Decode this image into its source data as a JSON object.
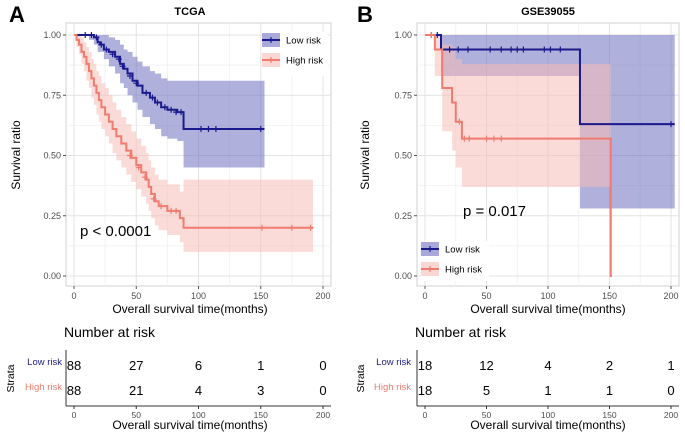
{
  "chart_data": [
    {
      "type": "line",
      "subtype": "kaplan-meier",
      "panel_label": "A",
      "title": "TCGA",
      "xlabel": "Overall survival time(months)",
      "ylabel": "Survival ratio",
      "xlim": [
        0,
        200
      ],
      "ylim": [
        0,
        1
      ],
      "x_ticks": [
        "0",
        "50",
        "100",
        "150",
        "200"
      ],
      "y_ticks": [
        "0.00",
        "0.25",
        "0.50",
        "0.75",
        "1.00"
      ],
      "p_value": "p < 0.0001",
      "legend_position": "top-right",
      "series": [
        {
          "name": "Low risk",
          "color": "#1a1a8c",
          "band_color": "#6f6fbf",
          "steps": [
            [
              0,
              1
            ],
            [
              12,
              1
            ],
            [
              16,
              0.99
            ],
            [
              19,
              0.97
            ],
            [
              21,
              0.96
            ],
            [
              24,
              0.94
            ],
            [
              28,
              0.93
            ],
            [
              33,
              0.91
            ],
            [
              37,
              0.88
            ],
            [
              40,
              0.86
            ],
            [
              43,
              0.84
            ],
            [
              47,
              0.81
            ],
            [
              51,
              0.79
            ],
            [
              55,
              0.76
            ],
            [
              61,
              0.74
            ],
            [
              65,
              0.72
            ],
            [
              70,
              0.7
            ],
            [
              75,
              0.69
            ],
            [
              83,
              0.68
            ],
            [
              88,
              0.61
            ],
            [
              153,
              0.61
            ]
          ],
          "lower": [
            [
              0,
              1
            ],
            [
              12,
              0.98
            ],
            [
              16,
              0.96
            ],
            [
              19,
              0.93
            ],
            [
              24,
              0.9
            ],
            [
              28,
              0.87
            ],
            [
              33,
              0.84
            ],
            [
              37,
              0.8
            ],
            [
              40,
              0.78
            ],
            [
              43,
              0.75
            ],
            [
              47,
              0.72
            ],
            [
              51,
              0.69
            ],
            [
              55,
              0.66
            ],
            [
              61,
              0.63
            ],
            [
              65,
              0.61
            ],
            [
              70,
              0.58
            ],
            [
              75,
              0.57
            ],
            [
              83,
              0.56
            ],
            [
              88,
              0.45
            ],
            [
              153,
              0.45
            ]
          ],
          "upper": [
            [
              0,
              1
            ],
            [
              24,
              1
            ],
            [
              28,
              0.99
            ],
            [
              33,
              0.98
            ],
            [
              37,
              0.96
            ],
            [
              40,
              0.94
            ],
            [
              43,
              0.93
            ],
            [
              47,
              0.91
            ],
            [
              51,
              0.89
            ],
            [
              55,
              0.87
            ],
            [
              61,
              0.85
            ],
            [
              65,
              0.84
            ],
            [
              70,
              0.82
            ],
            [
              75,
              0.81
            ],
            [
              83,
              0.81
            ],
            [
              88,
              0.81
            ],
            [
              153,
              0.81
            ]
          ],
          "censors": [
            [
              9,
              1
            ],
            [
              14,
              1
            ],
            [
              18,
              0.99
            ],
            [
              22,
              0.96
            ],
            [
              26,
              0.94
            ],
            [
              31,
              0.92
            ],
            [
              36,
              0.9
            ],
            [
              39,
              0.87
            ],
            [
              45,
              0.83
            ],
            [
              50,
              0.8
            ],
            [
              58,
              0.76
            ],
            [
              63,
              0.74
            ],
            [
              67,
              0.72
            ],
            [
              73,
              0.7
            ],
            [
              78,
              0.69
            ],
            [
              82,
              0.68
            ],
            [
              86,
              0.68
            ],
            [
              102,
              0.61
            ],
            [
              108,
              0.61
            ],
            [
              114,
              0.61
            ],
            [
              150,
              0.61
            ]
          ]
        },
        {
          "name": "High risk",
          "color": "#f07b6e",
          "band_color": "#f8bdb6",
          "steps": [
            [
              0,
              1
            ],
            [
              2,
              0.98
            ],
            [
              4,
              0.96
            ],
            [
              6,
              0.93
            ],
            [
              8,
              0.91
            ],
            [
              10,
              0.88
            ],
            [
              12,
              0.85
            ],
            [
              14,
              0.82
            ],
            [
              16,
              0.79
            ],
            [
              18,
              0.76
            ],
            [
              20,
              0.73
            ],
            [
              22,
              0.7
            ],
            [
              25,
              0.67
            ],
            [
              28,
              0.64
            ],
            [
              31,
              0.61
            ],
            [
              34,
              0.58
            ],
            [
              38,
              0.55
            ],
            [
              42,
              0.52
            ],
            [
              46,
              0.49
            ],
            [
              50,
              0.46
            ],
            [
              54,
              0.43
            ],
            [
              58,
              0.4
            ],
            [
              60,
              0.37
            ],
            [
              62,
              0.34
            ],
            [
              65,
              0.31
            ],
            [
              68,
              0.29
            ],
            [
              75,
              0.27
            ],
            [
              85,
              0.24
            ],
            [
              88,
              0.2
            ],
            [
              192,
              0.2
            ]
          ],
          "lower": [
            [
              0,
              1
            ],
            [
              2,
              0.95
            ],
            [
              4,
              0.92
            ],
            [
              6,
              0.88
            ],
            [
              8,
              0.85
            ],
            [
              10,
              0.81
            ],
            [
              12,
              0.78
            ],
            [
              14,
              0.74
            ],
            [
              16,
              0.71
            ],
            [
              18,
              0.67
            ],
            [
              20,
              0.64
            ],
            [
              22,
              0.61
            ],
            [
              25,
              0.58
            ],
            [
              28,
              0.55
            ],
            [
              31,
              0.51
            ],
            [
              34,
              0.48
            ],
            [
              38,
              0.45
            ],
            [
              42,
              0.42
            ],
            [
              46,
              0.39
            ],
            [
              50,
              0.36
            ],
            [
              54,
              0.33
            ],
            [
              58,
              0.3
            ],
            [
              60,
              0.27
            ],
            [
              62,
              0.24
            ],
            [
              65,
              0.21
            ],
            [
              68,
              0.19
            ],
            [
              75,
              0.17
            ],
            [
              85,
              0.14
            ],
            [
              88,
              0.1
            ],
            [
              192,
              0.1
            ]
          ],
          "upper": [
            [
              0,
              1
            ],
            [
              4,
              1
            ],
            [
              6,
              0.99
            ],
            [
              8,
              0.97
            ],
            [
              10,
              0.95
            ],
            [
              12,
              0.93
            ],
            [
              14,
              0.9
            ],
            [
              16,
              0.88
            ],
            [
              18,
              0.85
            ],
            [
              20,
              0.83
            ],
            [
              22,
              0.8
            ],
            [
              25,
              0.78
            ],
            [
              28,
              0.75
            ],
            [
              31,
              0.72
            ],
            [
              34,
              0.69
            ],
            [
              38,
              0.66
            ],
            [
              42,
              0.63
            ],
            [
              46,
              0.6
            ],
            [
              50,
              0.57
            ],
            [
              54,
              0.54
            ],
            [
              58,
              0.51
            ],
            [
              60,
              0.48
            ],
            [
              62,
              0.45
            ],
            [
              65,
              0.42
            ],
            [
              68,
              0.4
            ],
            [
              75,
              0.38
            ],
            [
              85,
              0.35
            ],
            [
              88,
              0.4
            ],
            [
              192,
              0.4
            ]
          ],
          "censors": [
            [
              45,
              0.5
            ],
            [
              52,
              0.45
            ],
            [
              57,
              0.41
            ],
            [
              64,
              0.32
            ],
            [
              70,
              0.29
            ],
            [
              78,
              0.27
            ],
            [
              82,
              0.27
            ],
            [
              151,
              0.2
            ],
            [
              175,
              0.2
            ],
            [
              190,
              0.2
            ]
          ]
        }
      ],
      "risk_table": {
        "title": "Number at risk",
        "strata_label": "Strata",
        "xlabel": "Overall survival time(months)",
        "x_ticks": [
          "0",
          "50",
          "100",
          "150",
          "200"
        ],
        "rows": [
          {
            "name": "Low risk",
            "color": "#1a1a8c",
            "values": [
              "88",
              "27",
              "6",
              "1",
              "0"
            ]
          },
          {
            "name": "High risk",
            "color": "#f07b6e",
            "values": [
              "88",
              "21",
              "4",
              "3",
              "0"
            ]
          }
        ]
      }
    },
    {
      "type": "line",
      "subtype": "kaplan-meier",
      "panel_label": "B",
      "title": "GSE39055",
      "xlabel": "Overall survival time(months)",
      "ylabel": "Survival ratio",
      "xlim": [
        0,
        200
      ],
      "ylim": [
        0,
        1
      ],
      "x_ticks": [
        "0",
        "50",
        "100",
        "150",
        "200"
      ],
      "y_ticks": [
        "0.00",
        "0.25",
        "0.50",
        "0.75",
        "1.00"
      ],
      "p_value": "p = 0.017",
      "legend_position": "bottom-left",
      "series": [
        {
          "name": "Low risk",
          "color": "#1a1a8c",
          "band_color": "#6f6fbf",
          "steps": [
            [
              0,
              1
            ],
            [
              13,
              0.94
            ],
            [
              126,
              0.94
            ],
            [
              126,
              0.63
            ],
            [
              203,
              0.63
            ]
          ],
          "lower": [
            [
              0,
              1
            ],
            [
              13,
              0.83
            ],
            [
              126,
              0.83
            ],
            [
              126,
              0.28
            ],
            [
              203,
              0.28
            ]
          ],
          "upper": [
            [
              0,
              1
            ],
            [
              13,
              1
            ],
            [
              203,
              1
            ]
          ],
          "censors": [
            [
              5,
              1
            ],
            [
              10,
              1
            ],
            [
              20,
              0.94
            ],
            [
              27,
              0.94
            ],
            [
              35,
              0.94
            ],
            [
              53,
              0.94
            ],
            [
              62,
              0.94
            ],
            [
              70,
              0.94
            ],
            [
              75,
              0.94
            ],
            [
              80,
              0.94
            ],
            [
              97,
              0.94
            ],
            [
              102,
              0.94
            ],
            [
              110,
              0.94
            ],
            [
              200,
              0.63
            ]
          ]
        },
        {
          "name": "High risk",
          "color": "#f07b6e",
          "band_color": "#f8bdb6",
          "steps": [
            [
              0,
              1
            ],
            [
              8,
              0.94
            ],
            [
              14,
              0.78
            ],
            [
              22,
              0.72
            ],
            [
              25,
              0.64
            ],
            [
              30,
              0.57
            ],
            [
              151,
              0.57
            ],
            [
              151,
              0
            ],
            [
              152,
              0
            ]
          ],
          "lower": [
            [
              0,
              1
            ],
            [
              8,
              0.83
            ],
            [
              14,
              0.6
            ],
            [
              22,
              0.52
            ],
            [
              25,
              0.45
            ],
            [
              30,
              0.37
            ],
            [
              151,
              0.37
            ],
            [
              151,
              0
            ],
            [
              152,
              0
            ]
          ],
          "upper": [
            [
              0,
              1
            ],
            [
              8,
              1
            ],
            [
              14,
              0.96
            ],
            [
              22,
              0.95
            ],
            [
              25,
              0.9
            ],
            [
              30,
              0.88
            ],
            [
              151,
              0.88
            ],
            [
              151,
              0
            ],
            [
              152,
              0
            ]
          ],
          "censors": [
            [
              5,
              1
            ],
            [
              28,
              0.64
            ],
            [
              32,
              0.57
            ],
            [
              36,
              0.57
            ],
            [
              50,
              0.57
            ],
            [
              56,
              0.57
            ],
            [
              62,
              0.57
            ]
          ]
        }
      ],
      "risk_table": {
        "title": "Number at risk",
        "strata_label": "Strata",
        "xlabel": "Overall survival time(months)",
        "x_ticks": [
          "0",
          "50",
          "100",
          "150",
          "200"
        ],
        "rows": [
          {
            "name": "Low risk",
            "color": "#1a1a8c",
            "values": [
              "18",
              "12",
              "4",
              "2",
              "1"
            ]
          },
          {
            "name": "High risk",
            "color": "#f07b6e",
            "values": [
              "18",
              "5",
              "1",
              "1",
              "0"
            ]
          }
        ]
      }
    }
  ]
}
